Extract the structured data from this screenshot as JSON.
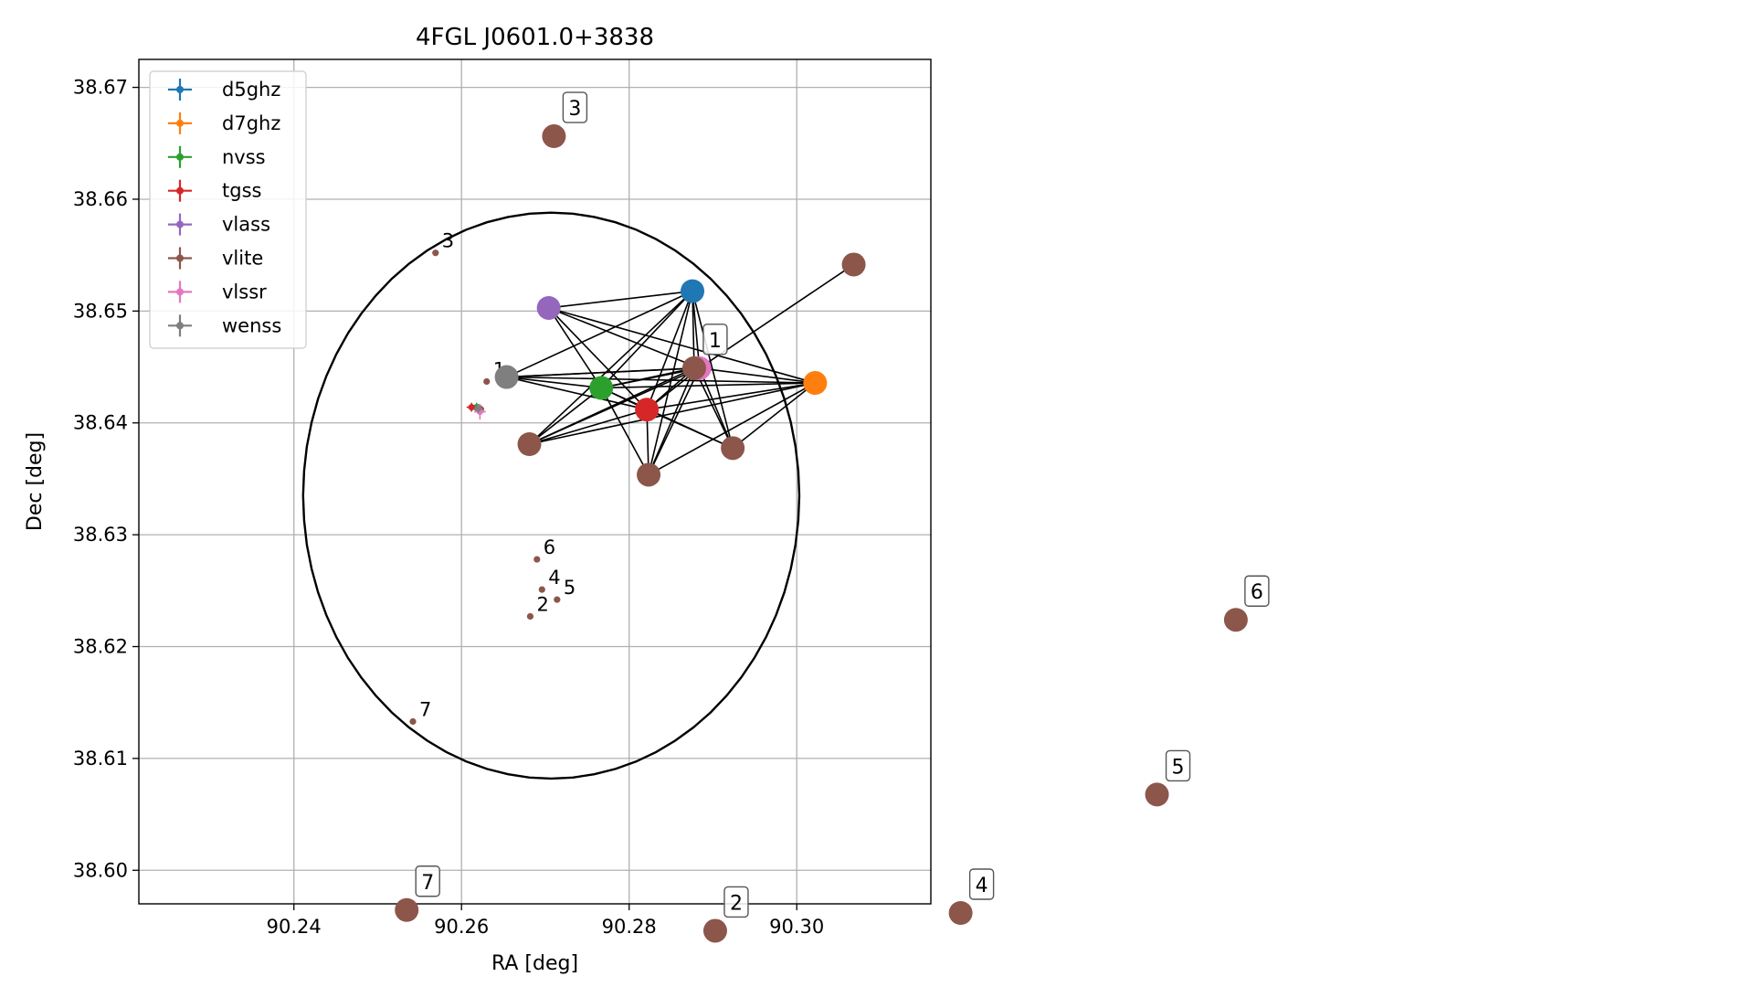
{
  "colors": {
    "d5ghz": "#1f77b4",
    "d7ghz": "#ff7f0e",
    "nvss": "#2ca02c",
    "tgss": "#d62728",
    "vlass": "#9467bd",
    "vlite": "#8c564b",
    "vlssr": "#e377c2",
    "wenss": "#7f7f7f",
    "axis": "#000000",
    "grid": "#b0b0b0"
  },
  "chart_data": [
    {
      "type": "scatter",
      "title": "4FGL J0601.0+3838",
      "xlabel": "RA [deg]",
      "ylabel": "Dec [deg]",
      "xlim": [
        90.2215,
        90.316
      ],
      "ylim": [
        38.597,
        38.6725
      ],
      "xticks": [
        90.24,
        90.26,
        90.28,
        90.3
      ],
      "xtick_labels": [
        "90.24",
        "90.26",
        "90.28",
        "90.30"
      ],
      "yticks": [
        38.6,
        38.61,
        38.62,
        38.63,
        38.64,
        38.65,
        38.66,
        38.67
      ],
      "ytick_labels": [
        "38.60",
        "38.61",
        "38.62",
        "38.63",
        "38.64",
        "38.65",
        "38.66",
        "38.67"
      ],
      "grid": true,
      "legend_position": "top-left",
      "ellipse": {
        "center": [
          90.2707,
          38.6335
        ],
        "ra_radius": 0.0296,
        "dec_radius": 0.0253
      },
      "series": [
        {
          "name": "d5ghz",
          "color_key": "d5ghz",
          "points": [
            [
              90.262,
              38.6412
            ]
          ],
          "err": [
            0.0005,
            0.0003
          ]
        },
        {
          "name": "d7ghz",
          "color_key": "d7ghz",
          "points": [
            [
              90.2622,
              38.6413
            ]
          ],
          "err": [
            0.0005,
            0.0003
          ]
        },
        {
          "name": "nvss",
          "color_key": "nvss",
          "points": [
            [
              90.2618,
              38.6414
            ]
          ],
          "err": [
            0.0005,
            0.0004
          ]
        },
        {
          "name": "tgss",
          "color_key": "tgss",
          "points": [
            [
              90.2612,
              38.6414
            ]
          ],
          "err": [
            0.0006,
            0.0004
          ]
        },
        {
          "name": "vlass",
          "color_key": "vlass",
          "points": [
            [
              90.2621,
              38.6413
            ]
          ],
          "err": [
            0.0003,
            0.0002
          ]
        },
        {
          "name": "vlite",
          "color_key": "vlite",
          "points": [
            [
              90.263,
              38.6437
            ],
            [
              90.2682,
              38.6227
            ],
            [
              90.2569,
              38.6552
            ],
            [
              90.2696,
              38.6251
            ],
            [
              90.2714,
              38.6242
            ],
            [
              90.269,
              38.6278
            ],
            [
              90.2542,
              38.6133
            ],
            [
              90.2623,
              38.6412
            ]
          ],
          "err": [
            0.0002,
            0.0002
          ]
        },
        {
          "name": "vlssr",
          "color_key": "vlssr",
          "points": [
            [
              90.2622,
              38.641
            ]
          ],
          "err": [
            0.0007,
            0.0007
          ]
        },
        {
          "name": "wenss",
          "color_key": "wenss",
          "points": [
            [
              90.262,
              38.6413
            ]
          ],
          "err": [
            0.0005,
            0.0004
          ]
        }
      ],
      "point_labels": [
        {
          "text": "1",
          "x": 90.263,
          "y": 38.6437
        },
        {
          "text": "2",
          "x": 90.2682,
          "y": 38.6227
        },
        {
          "text": "3",
          "x": 90.2569,
          "y": 38.6552
        },
        {
          "text": "4",
          "x": 90.2696,
          "y": 38.6251
        },
        {
          "text": "5",
          "x": 90.2714,
          "y": 38.6242
        },
        {
          "text": "6",
          "x": 90.269,
          "y": 38.6278
        },
        {
          "text": "7",
          "x": 90.2542,
          "y": 38.6133
        }
      ]
    },
    {
      "type": "network",
      "nodes": [
        {
          "id": "d5",
          "color_key": "d5ghz",
          "pos": [
            0.395,
            0.295
          ]
        },
        {
          "id": "d7",
          "color_key": "d7ghz",
          "pos": [
            0.465,
            0.388
          ]
        },
        {
          "id": "nv",
          "color_key": "nvss",
          "pos": [
            0.343,
            0.393
          ]
        },
        {
          "id": "tg",
          "color_key": "tgss",
          "pos": [
            0.369,
            0.415
          ]
        },
        {
          "id": "vs",
          "color_key": "vlass",
          "pos": [
            0.313,
            0.312
          ]
        },
        {
          "id": "vr",
          "color_key": "vlssr",
          "pos": [
            0.399,
            0.373
          ]
        },
        {
          "id": "we",
          "color_key": "wenss",
          "pos": [
            0.289,
            0.382
          ]
        },
        {
          "id": "c1",
          "color_key": "vlite",
          "pos": [
            0.487,
            0.268
          ]
        },
        {
          "id": "c2",
          "color_key": "vlite",
          "pos": [
            0.302,
            0.45
          ]
        },
        {
          "id": "c3",
          "color_key": "vlite",
          "pos": [
            0.37,
            0.481
          ]
        },
        {
          "id": "c4",
          "color_key": "vlite",
          "pos": [
            0.418,
            0.454
          ]
        },
        {
          "id": "l1",
          "color_key": "vlite",
          "pos": [
            0.396,
            0.373
          ],
          "label": "1"
        },
        {
          "id": "l2",
          "color_key": "vlite",
          "pos": [
            0.408,
            0.943
          ],
          "label": "2"
        },
        {
          "id": "l3",
          "color_key": "vlite",
          "pos": [
            0.316,
            0.138
          ],
          "label": "3"
        },
        {
          "id": "l4",
          "color_key": "vlite",
          "pos": [
            0.548,
            0.925
          ],
          "label": "4"
        },
        {
          "id": "l5",
          "color_key": "vlite",
          "pos": [
            0.66,
            0.805
          ],
          "label": "5"
        },
        {
          "id": "l6",
          "color_key": "vlite",
          "pos": [
            0.705,
            0.628
          ],
          "label": "6"
        },
        {
          "id": "l7",
          "color_key": "vlite",
          "pos": [
            0.232,
            0.922
          ],
          "label": "7"
        }
      ],
      "edges": [
        [
          "d5",
          "nv"
        ],
        [
          "d5",
          "tg"
        ],
        [
          "d5",
          "vs"
        ],
        [
          "d5",
          "we"
        ],
        [
          "d5",
          "c2"
        ],
        [
          "d5",
          "c3"
        ],
        [
          "d5",
          "c4"
        ],
        [
          "d5",
          "vr"
        ],
        [
          "d7",
          "nv"
        ],
        [
          "d7",
          "tg"
        ],
        [
          "d7",
          "vs"
        ],
        [
          "d7",
          "we"
        ],
        [
          "d7",
          "c2"
        ],
        [
          "d7",
          "c3"
        ],
        [
          "d7",
          "c4"
        ],
        [
          "d7",
          "vr"
        ],
        [
          "nv",
          "tg"
        ],
        [
          "nv",
          "vs"
        ],
        [
          "nv",
          "we"
        ],
        [
          "nv",
          "c2"
        ],
        [
          "nv",
          "c3"
        ],
        [
          "nv",
          "c4"
        ],
        [
          "nv",
          "vr"
        ],
        [
          "tg",
          "vs"
        ],
        [
          "tg",
          "we"
        ],
        [
          "tg",
          "c2"
        ],
        [
          "tg",
          "c3"
        ],
        [
          "tg",
          "c4"
        ],
        [
          "tg",
          "vr"
        ],
        [
          "vs",
          "vr"
        ],
        [
          "we",
          "vr"
        ],
        [
          "c2",
          "vr"
        ],
        [
          "c3",
          "vr"
        ],
        [
          "c4",
          "vr"
        ],
        [
          "c1",
          "vr"
        ],
        [
          "vr",
          "l1"
        ],
        [
          "d5",
          "l1"
        ],
        [
          "nv",
          "l1"
        ],
        [
          "tg",
          "l1"
        ],
        [
          "we",
          "l1"
        ],
        [
          "c2",
          "l1"
        ],
        [
          "c3",
          "l1"
        ],
        [
          "c4",
          "l1"
        ]
      ]
    }
  ]
}
